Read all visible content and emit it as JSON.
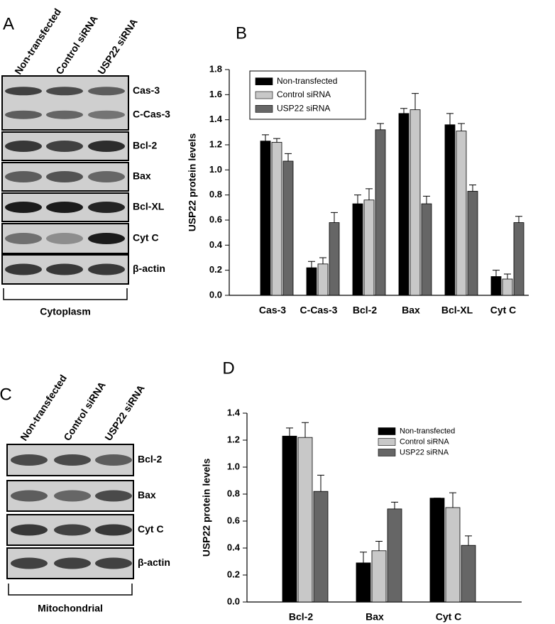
{
  "blots": [
    {
      "panel_label": "A",
      "lanes": [
        "Non-transfected",
        "Control siRNA",
        "USP22 siRNA"
      ],
      "rows": [
        [
          "Cas-3",
          "C-Cas-3"
        ],
        [
          "Bcl-2"
        ],
        [
          "Bax"
        ],
        [
          "Bcl-XL"
        ],
        [
          "Cyt C"
        ],
        [
          "β-actin"
        ]
      ],
      "fraction": "Cytoplasm"
    },
    {
      "panel_label": "C",
      "lanes": [
        "Non-transfected",
        "Control siRNA",
        "USP22 siRNA"
      ],
      "rows": [
        [
          "Bcl-2"
        ],
        [
          "Bax"
        ],
        [
          "Cyt C"
        ],
        [
          "β-actin"
        ]
      ],
      "fraction": "Mitochondrial"
    }
  ],
  "chart_data": [
    {
      "type": "bar",
      "panel_label": "B",
      "y_label": "USP22 protein levels",
      "categories": [
        "Cas-3",
        "C-Cas-3",
        "Bcl-2",
        "Bax",
        "Bcl-XL",
        "Cyt C"
      ],
      "series": [
        {
          "name": "Non-transfected",
          "color": "#000000",
          "values": [
            1.23,
            0.22,
            0.73,
            1.45,
            1.36,
            0.15
          ],
          "errors": [
            0.05,
            0.05,
            0.07,
            0.04,
            0.09,
            0.05
          ]
        },
        {
          "name": "Control siRNA",
          "color": "#c8c8c8",
          "values": [
            1.22,
            0.25,
            0.76,
            1.48,
            1.31,
            0.13
          ],
          "errors": [
            0.03,
            0.05,
            0.09,
            0.13,
            0.06,
            0.04
          ]
        },
        {
          "name": "USP22 siRNA",
          "color": "#666666",
          "values": [
            1.07,
            0.58,
            1.32,
            0.73,
            0.83,
            0.58
          ],
          "errors": [
            0.06,
            0.08,
            0.05,
            0.06,
            0.05,
            0.05
          ]
        }
      ],
      "ylim": [
        0,
        1.8
      ],
      "yticks": [
        {
          "value": 0,
          "label": "0.0"
        },
        0.2,
        0.4,
        0.6,
        0.8,
        {
          "value": 1,
          "label": "1.0"
        },
        1.2,
        1.4,
        1.6,
        1.8
      ],
      "legend_position": "upper left",
      "legend_border": true
    },
    {
      "type": "bar",
      "panel_label": "D",
      "y_label": "USP22 protein levels",
      "categories": [
        "Bcl-2",
        "Bax",
        "Cyt C"
      ],
      "series": [
        {
          "name": "Non-transfected",
          "color": "#000000",
          "values": [
            1.23,
            0.29,
            0.77
          ],
          "errors": [
            0.06,
            0.08,
            0
          ]
        },
        {
          "name": "Control siRNA",
          "color": "#c8c8c8",
          "values": [
            1.22,
            0.38,
            0.7
          ],
          "errors": [
            0.11,
            0.07,
            0.11
          ]
        },
        {
          "name": "USP22 siRNA",
          "color": "#666666",
          "values": [
            0.82,
            0.69,
            0.42
          ],
          "errors": [
            0.12,
            0.05,
            0.07
          ]
        }
      ],
      "ylim": [
        0,
        1.4
      ],
      "yticks": [
        {
          "value": 0,
          "label": "0.0"
        },
        0.2,
        0.4,
        0.6,
        0.8,
        {
          "value": 1,
          "label": "1.0"
        },
        1.2,
        1.4
      ],
      "legend_position": "upper right",
      "legend_border": false
    }
  ]
}
